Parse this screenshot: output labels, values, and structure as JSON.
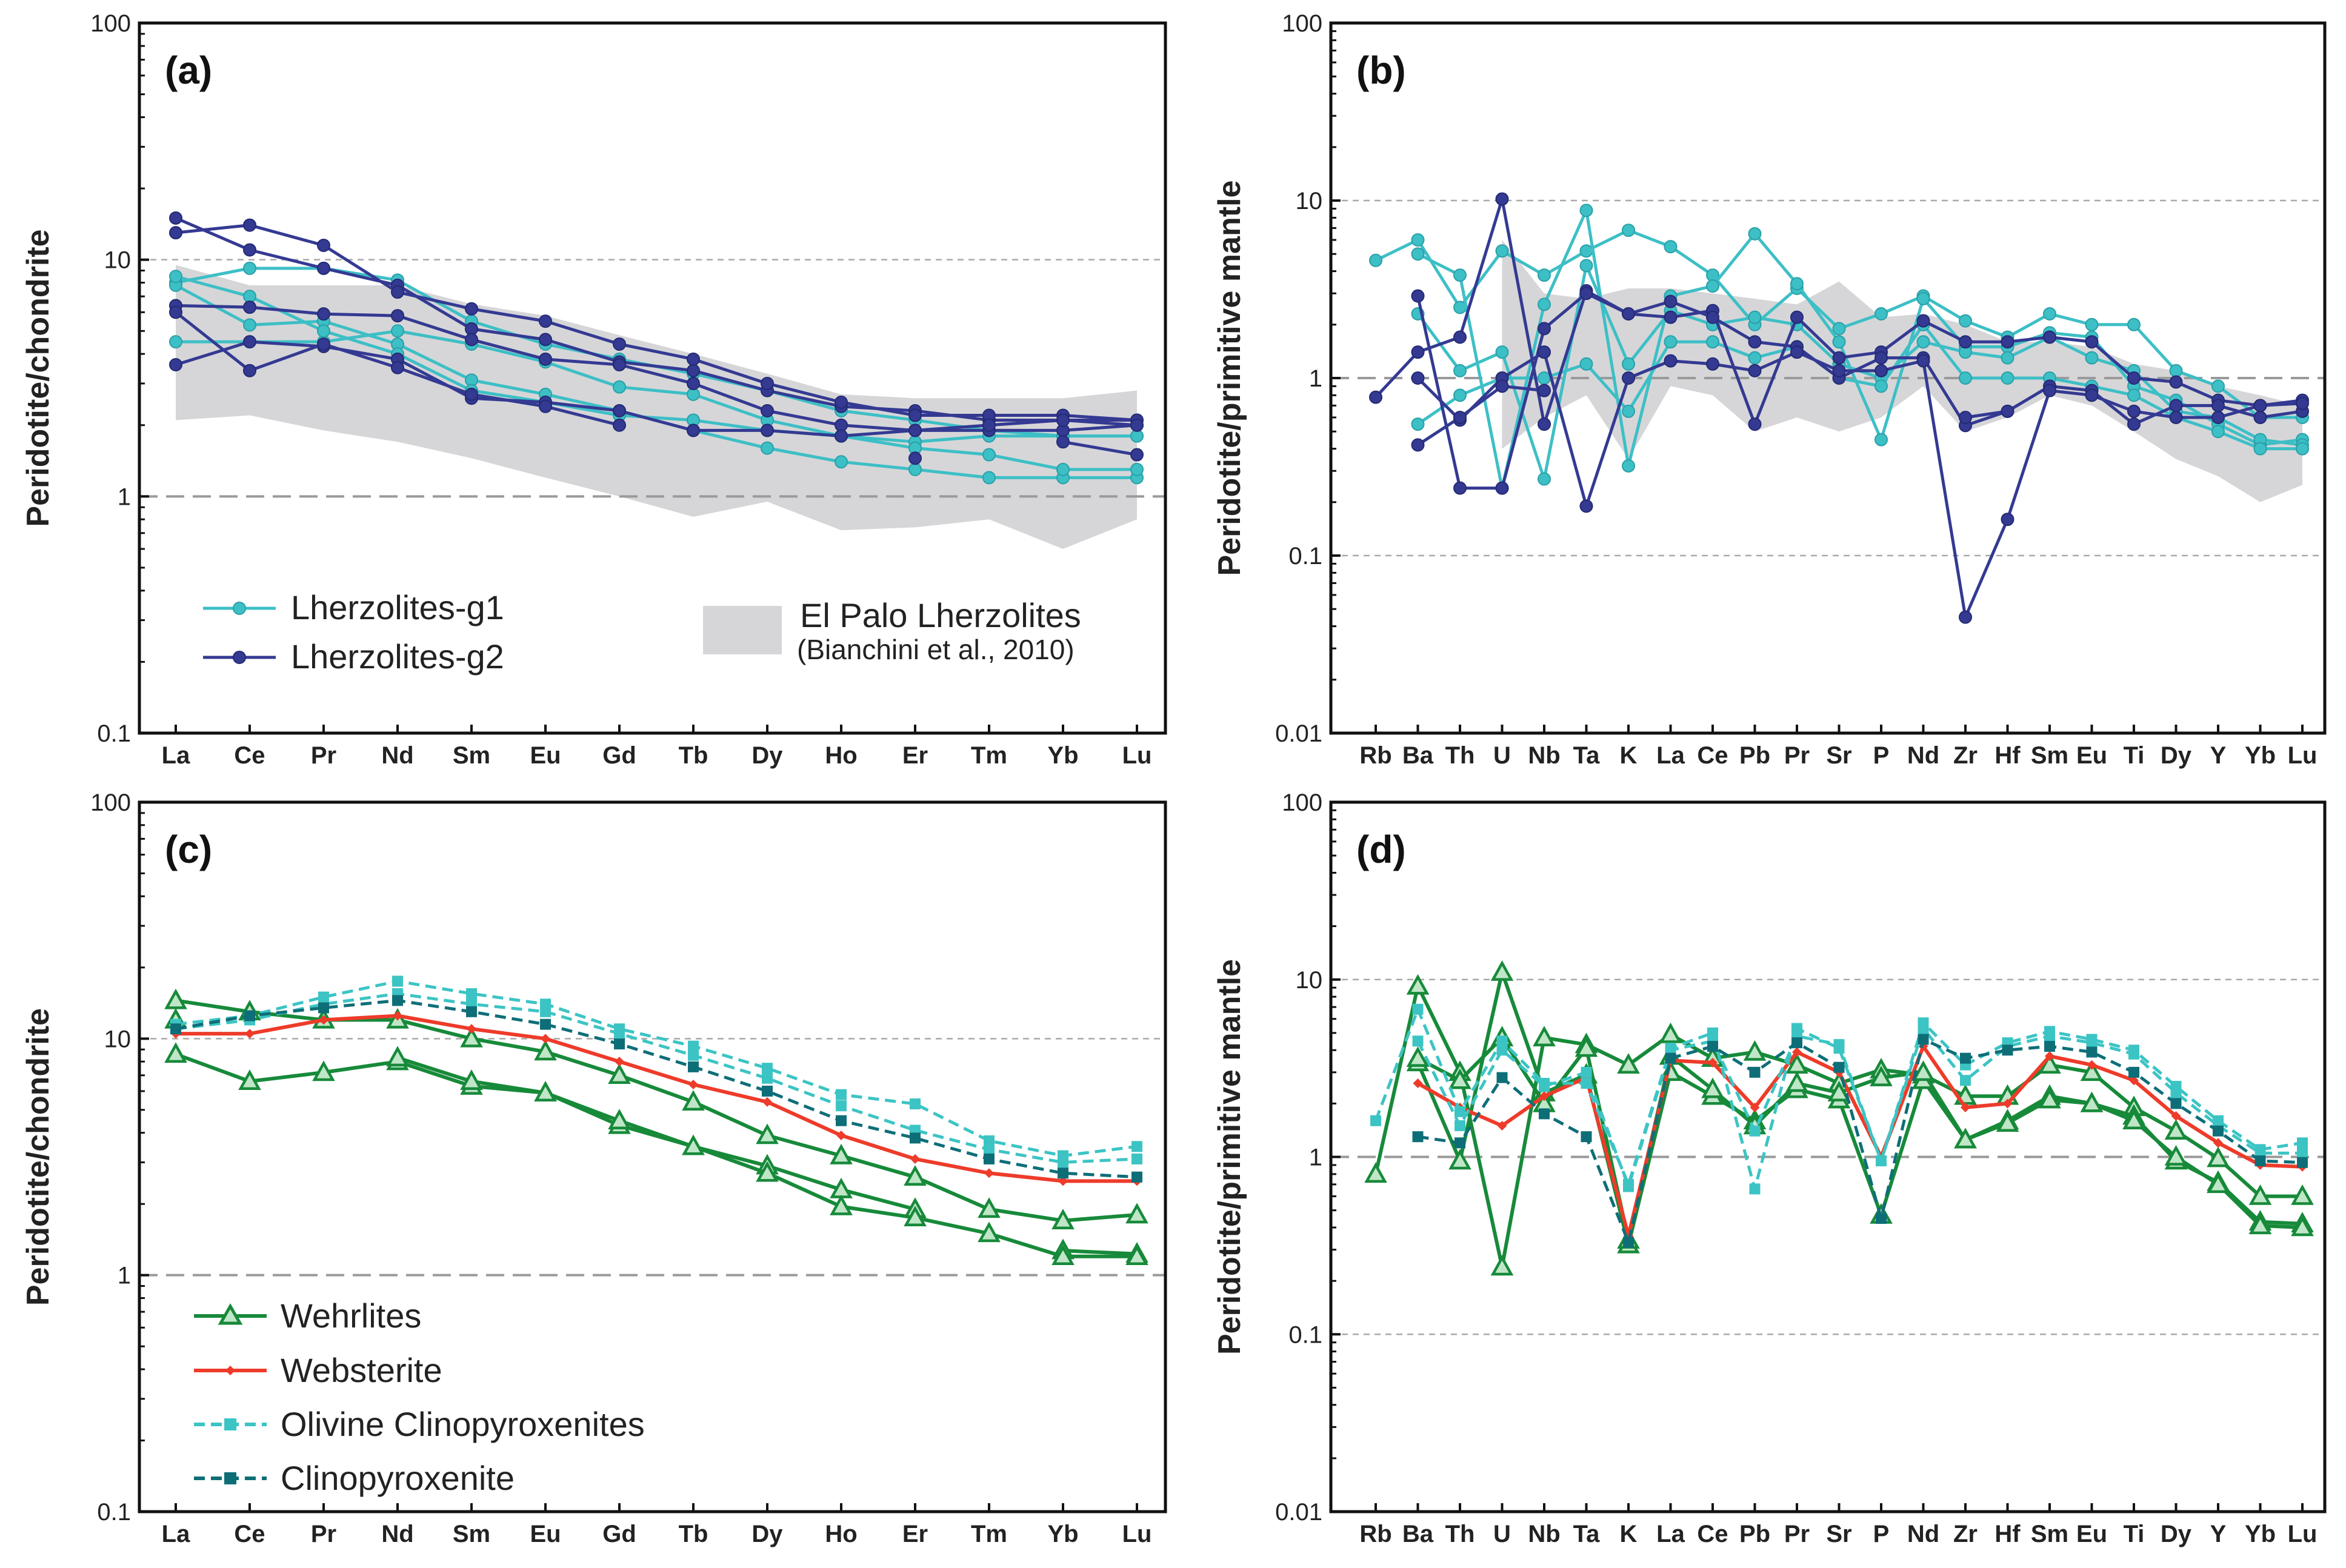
{
  "colors": {
    "lherzolites_g1": "#3dbfc6",
    "lherzolites_g2": "#343a92",
    "wehrlites": "#178a3a",
    "websterite": "#ee3b2a",
    "olivine_clinopyroxenites": "#3cc4c4",
    "clinopyroxenite": "#0e6e78",
    "el_palo_band": "#d6d6d8"
  },
  "chart_data": [
    {
      "panel": "(a)",
      "type": "line",
      "y_scale": "log",
      "ylim": [
        0.1,
        100
      ],
      "y_ticks": [
        "0.1",
        "1",
        "10",
        "100"
      ],
      "ylabel": "Peridotite/chondrite",
      "categories": [
        "La",
        "Ce",
        "Pr",
        "Nd",
        "Sm",
        "Eu",
        "Gd",
        "Tb",
        "Dy",
        "Ho",
        "Er",
        "Tm",
        "Yb",
        "Lu"
      ],
      "band": {
        "name": "El Palo Lherzolites",
        "ref": "(Bianchini et al., 2010)",
        "upper": [
          9.5,
          7.8,
          7.8,
          7.8,
          6.5,
          5.8,
          4.8,
          4.0,
          3.3,
          2.7,
          2.6,
          2.6,
          2.6,
          2.8
        ],
        "lower": [
          2.1,
          2.2,
          1.9,
          1.7,
          1.45,
          1.2,
          1.0,
          0.82,
          0.95,
          0.72,
          0.74,
          0.8,
          0.6,
          0.8
        ]
      },
      "series": [
        {
          "name": "Lherzolites-g1",
          "style": "g1",
          "values": [
            8.0,
            9.2,
            9.2,
            8.2,
            5.5,
            4.4,
            3.8,
            3.3,
            2.8,
            2.3,
            2.1,
            1.9,
            1.8,
            1.8
          ]
        },
        {
          "style": "g1",
          "values": [
            4.5,
            4.5,
            4.5,
            5.0,
            4.4,
            3.7,
            2.9,
            2.7,
            2.1,
            1.8,
            1.7,
            1.8,
            1.8,
            1.8
          ]
        },
        {
          "style": "g1",
          "values": [
            7.8,
            5.3,
            5.5,
            4.4,
            3.1,
            2.7,
            2.3,
            1.9,
            1.6,
            1.4,
            1.3,
            1.2,
            1.2,
            1.2
          ]
        },
        {
          "style": "g1",
          "values": [
            8.5,
            7.0,
            5.0,
            4.0,
            2.8,
            2.5,
            2.2,
            2.1,
            1.9,
            1.8,
            1.6,
            1.5,
            1.3,
            1.3
          ]
        },
        {
          "name": "Lherzolites-g2",
          "style": "g2",
          "values": [
            15.0,
            11.0,
            9.2,
            7.8,
            5.1,
            4.6,
            3.7,
            3.4,
            2.8,
            2.4,
            2.3,
            2.1,
            2.1,
            2.1
          ]
        },
        {
          "style": "g2",
          "values": [
            13.0,
            14.0,
            11.5,
            7.3,
            6.2,
            5.5,
            4.4,
            3.8,
            3.0,
            2.5,
            2.2,
            2.2,
            2.2,
            2.1
          ]
        },
        {
          "style": "g2",
          "values": [
            6.4,
            6.3,
            5.9,
            5.8,
            4.6,
            3.8,
            3.6,
            3.0,
            2.3,
            2.0,
            1.9,
            1.9,
            1.9,
            2.0
          ]
        },
        {
          "style": "g2",
          "values": [
            3.6,
            4.5,
            4.3,
            3.8,
            2.6,
            2.5,
            2.3,
            1.9,
            1.9,
            1.8,
            1.9,
            2.0,
            2.1,
            2.0
          ]
        },
        {
          "style": "g2",
          "values": [
            6.0,
            3.4,
            4.4,
            3.5,
            2.7,
            2.4,
            2.0,
            null,
            null,
            null,
            null,
            null,
            null,
            null
          ]
        },
        {
          "style": "g2",
          "values": [
            null,
            null,
            null,
            null,
            null,
            null,
            null,
            null,
            null,
            null,
            1.45,
            null,
            1.7,
            1.5
          ]
        }
      ]
    },
    {
      "panel": "(b)",
      "type": "line",
      "y_scale": "log",
      "ylim": [
        0.01,
        100
      ],
      "y_ticks": [
        "0.01",
        "0.1",
        "1",
        "10",
        "100"
      ],
      "ylabel": "Peridotite/primitive mantle",
      "categories": [
        "Rb",
        "Ba",
        "Th",
        "U",
        "Nb",
        "Ta",
        "K",
        "La",
        "Ce",
        "Pb",
        "Pr",
        "Sr",
        "P",
        "Nd",
        "Zr",
        "Hf",
        "Sm",
        "Eu",
        "Ti",
        "Dy",
        "Y",
        "Yb",
        "Lu"
      ],
      "band": {
        "upper": [
          null,
          null,
          null,
          6.0,
          3.0,
          2.8,
          3.2,
          3.2,
          3.0,
          2.8,
          2.6,
          3.5,
          2.2,
          2.3,
          2.0,
          1.6,
          1.6,
          1.5,
          1.2,
          1.1,
          0.9,
          0.8,
          0.7
        ],
        "lower": [
          null,
          null,
          null,
          0.4,
          0.6,
          0.8,
          0.35,
          0.9,
          0.8,
          0.5,
          0.6,
          0.5,
          0.6,
          0.9,
          0.5,
          0.6,
          0.8,
          0.7,
          0.5,
          0.35,
          0.28,
          0.2,
          0.25
        ]
      },
      "series": [
        {
          "style": "g1",
          "values": [
            4.6,
            6.0,
            2.5,
            5.2,
            3.8,
            5.2,
            6.8,
            5.5,
            3.8,
            2.0,
            3.2,
            1.9,
            2.3,
            2.9,
            2.1,
            1.7,
            2.3,
            2.0,
            2.0,
            1.1,
            0.9,
            0.6,
            0.6
          ]
        },
        {
          "style": "g1",
          "values": [
            null,
            5.0,
            3.8,
            0.24,
            2.6,
            8.8,
            0.32,
            2.9,
            3.3,
            6.5,
            3.4,
            1.6,
            0.45,
            2.8,
            1.5,
            1.5,
            1.8,
            1.7,
            0.9,
            0.75,
            0.55,
            0.42,
            0.45
          ]
        },
        {
          "style": "g1",
          "values": [
            null,
            2.3,
            1.1,
            1.4,
            0.27,
            4.3,
            1.2,
            2.4,
            2.0,
            2.2,
            2.0,
            1.2,
            1.0,
            1.6,
            1.4,
            1.3,
            1.7,
            1.3,
            1.1,
            0.65,
            0.6,
            0.45,
            0.42
          ]
        },
        {
          "style": "g1",
          "values": [
            null,
            0.55,
            0.8,
            1.0,
            1.0,
            1.2,
            0.65,
            1.6,
            1.6,
            1.3,
            1.5,
            1.0,
            0.9,
            2.0,
            1.0,
            1.0,
            1.0,
            0.9,
            0.8,
            0.6,
            0.5,
            0.4,
            0.4
          ]
        },
        {
          "style": "g2",
          "values": [
            0.78,
            1.4,
            1.7,
            10.2,
            0.55,
            3.1,
            2.3,
            2.2,
            2.4,
            0.55,
            2.2,
            1.3,
            1.4,
            2.1,
            1.6,
            1.6,
            1.7,
            1.6,
            1.0,
            0.95,
            0.75,
            0.7,
            0.75
          ]
        },
        {
          "style": "g2",
          "values": [
            null,
            2.9,
            0.24,
            0.24,
            1.9,
            3.0,
            2.3,
            2.7,
            2.2,
            1.6,
            1.5,
            1.0,
            1.3,
            1.3,
            0.54,
            0.65,
            0.9,
            0.85,
            0.55,
            0.7,
            0.7,
            0.6,
            0.65
          ]
        },
        {
          "style": "g2",
          "values": [
            null,
            1.0,
            0.58,
            1.0,
            1.4,
            0.19,
            1.0,
            1.25,
            1.2,
            1.1,
            1.4,
            1.1,
            1.1,
            1.25,
            0.045,
            0.16,
            0.85,
            0.8,
            0.65,
            0.6,
            0.6,
            0.7,
            0.72
          ]
        },
        {
          "style": "g2",
          "values": [
            null,
            0.42,
            0.6,
            0.9,
            0.85,
            null,
            null,
            null,
            null,
            null,
            null,
            null,
            null,
            null,
            0.6,
            0.65,
            null,
            null,
            null,
            null,
            null,
            null,
            null
          ]
        }
      ]
    },
    {
      "panel": "(c)",
      "type": "line",
      "y_scale": "log",
      "ylim": [
        0.1,
        100
      ],
      "y_ticks": [
        "0.1",
        "1",
        "10",
        "100"
      ],
      "ylabel": "Peridotite/chondrite",
      "categories": [
        "La",
        "Ce",
        "Pr",
        "Nd",
        "Sm",
        "Eu",
        "Gd",
        "Tb",
        "Dy",
        "Ho",
        "Er",
        "Tm",
        "Yb",
        "Lu"
      ],
      "series": [
        {
          "name": "Wehrlites",
          "style": "wehr",
          "values": [
            14.5,
            13.0,
            12.0,
            12.0,
            10.0,
            8.8,
            7.0,
            5.4,
            3.9,
            3.2,
            2.6,
            1.9,
            1.7,
            1.8
          ]
        },
        {
          "style": "wehr",
          "values": [
            8.6,
            6.6,
            7.2,
            8.0,
            6.3,
            5.9,
            4.3,
            3.5,
            2.9,
            2.3,
            1.9,
            null,
            1.27,
            1.23
          ]
        },
        {
          "style": "wehr",
          "values": [
            12.0,
            null,
            null,
            8.3,
            6.6,
            5.9,
            4.5,
            3.5,
            2.7,
            1.95,
            1.75,
            1.5,
            1.2,
            1.2
          ]
        },
        {
          "name": "Websterite",
          "style": "webst",
          "values": [
            10.5,
            10.5,
            12.0,
            12.5,
            11.0,
            10.0,
            8.0,
            6.4,
            5.4,
            3.9,
            3.1,
            2.7,
            2.5,
            2.5
          ]
        },
        {
          "name": "Olivine Clinopyroxenites",
          "style": "olcpx",
          "values": [
            11.5,
            12.5,
            15.0,
            17.5,
            15.5,
            14.0,
            11.0,
            9.3,
            7.5,
            5.8,
            5.3,
            3.7,
            3.2,
            3.5
          ]
        },
        {
          "style": "olcpx",
          "values": [
            11.0,
            12.0,
            14.0,
            15.5,
            14.0,
            13.0,
            10.5,
            8.5,
            6.8,
            5.2,
            4.1,
            3.4,
            3.0,
            3.1
          ]
        },
        {
          "name": "Clinopyroxenite",
          "style": "cpx",
          "values": [
            11.0,
            12.5,
            13.5,
            14.5,
            13.0,
            11.5,
            9.5,
            7.6,
            6.0,
            4.5,
            3.8,
            3.1,
            2.7,
            2.6
          ]
        }
      ]
    },
    {
      "panel": "(d)",
      "type": "line",
      "y_scale": "log",
      "ylim": [
        0.01,
        100
      ],
      "y_ticks": [
        "0.01",
        "0.1",
        "1",
        "10",
        "100"
      ],
      "ylabel": "Peridotite/primitive mantle",
      "categories": [
        "Rb",
        "Ba",
        "Th",
        "U",
        "Nb",
        "Ta",
        "K",
        "La",
        "Ce",
        "Pb",
        "Pr",
        "Sr",
        "P",
        "Nd",
        "Zr",
        "Hf",
        "Sm",
        "Eu",
        "Ti",
        "Dy",
        "Y",
        "Yb",
        "Lu"
      ],
      "series": [
        {
          "style": "wehr",
          "values": [
            0.8,
            9.2,
            3.0,
            0.24,
            4.7,
            4.3,
            3.3,
            4.9,
            3.6,
            3.9,
            3.3,
            2.6,
            3.1,
            2.9,
            2.2,
            2.2,
            3.3,
            3.0,
            1.9,
            1.4,
            0.98,
            0.6,
            0.6
          ]
        },
        {
          "style": "wehr",
          "values": [
            null,
            3.4,
            0.95,
            11.0,
            2.3,
            2.9,
            0.32,
            3.0,
            2.2,
            1.6,
            2.4,
            2.1,
            0.47,
            2.7,
            1.25,
            1.6,
            2.2,
            2.0,
            1.7,
            0.95,
            0.72,
            0.43,
            0.42
          ]
        },
        {
          "style": "wehr",
          "values": [
            null,
            3.6,
            2.7,
            4.7,
            2.0,
            4.1,
            0.34,
            3.7,
            2.4,
            1.5,
            2.6,
            2.3,
            2.8,
            3.0,
            1.25,
            1.55,
            2.1,
            2.0,
            1.6,
            1.0,
            0.7,
            0.41,
            0.4
          ]
        },
        {
          "style": "webst",
          "values": [
            null,
            2.6,
            1.9,
            1.5,
            2.2,
            2.8,
            0.36,
            3.5,
            3.4,
            1.9,
            3.9,
            3.0,
            1.0,
            4.2,
            1.9,
            2.0,
            3.7,
            3.3,
            2.7,
            1.7,
            1.2,
            0.9,
            0.88
          ]
        },
        {
          "style": "olcpx",
          "values": [
            1.6,
            6.8,
            1.8,
            4.5,
            2.6,
            2.6,
            0.7,
            4.1,
            5.0,
            0.66,
            5.3,
            4.1,
            0.95,
            5.7,
            3.3,
            4.4,
            5.1,
            4.6,
            4.0,
            2.5,
            1.6,
            1.1,
            1.2
          ]
        },
        {
          "style": "olcpx",
          "values": [
            null,
            4.5,
            1.5,
            4.0,
            2.5,
            3.0,
            0.68,
            4.0,
            4.5,
            1.4,
            4.8,
            4.3,
            0.95,
            5.3,
            2.7,
            4.2,
            4.8,
            4.4,
            3.8,
            2.3,
            1.5,
            1.05,
            1.05
          ]
        },
        {
          "style": "cpx",
          "values": [
            null,
            1.3,
            1.2,
            2.8,
            1.75,
            1.3,
            0.33,
            3.6,
            4.2,
            3.0,
            4.4,
            3.2,
            0.45,
            4.6,
            3.6,
            4.0,
            4.2,
            3.9,
            3.0,
            2.0,
            1.4,
            0.95,
            0.93
          ]
        }
      ]
    }
  ],
  "legends": {
    "a": {
      "g1": "Lherzolites-g1",
      "g2": "Lherzolites-g2",
      "band_title": "El Palo Lherzolites",
      "band_ref": "(Bianchini et al., 2010)"
    },
    "c": {
      "wehr": "Wehrlites",
      "webst": "Websterite",
      "olcpx": "Olivine Clinopyroxenites",
      "cpx": "Clinopyroxenite"
    }
  }
}
